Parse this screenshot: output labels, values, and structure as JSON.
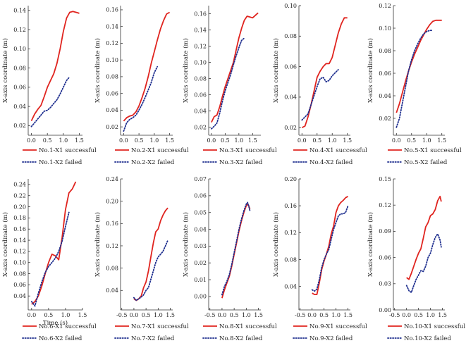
{
  "figure": {
    "xlabel": "Time (s)",
    "ylabel": "X-axis coordinate (m)"
  },
  "colors": {
    "success": "#e0241f",
    "failed": "#1f2f8f",
    "axis": "#333333"
  },
  "chart_data": [
    {
      "type": "line",
      "xticks": [
        "0.0",
        "0.5",
        "1.0",
        "1.5"
      ],
      "xlim": [
        -0.1,
        1.6
      ],
      "yticks": [
        "0.02",
        "0.04",
        "0.06",
        "0.08",
        "0.10",
        "0.12",
        "0.14"
      ],
      "ylim": [
        0.01,
        0.145
      ],
      "series": [
        {
          "name": "No.1-X1 successful",
          "style": "solid",
          "x": [
            0,
            0.1,
            0.2,
            0.3,
            0.4,
            0.5,
            0.6,
            0.7,
            0.8,
            0.9,
            1.0,
            1.1,
            1.2,
            1.3,
            1.4,
            1.5
          ],
          "y": [
            0.025,
            0.032,
            0.037,
            0.041,
            0.05,
            0.06,
            0.067,
            0.074,
            0.085,
            0.1,
            0.118,
            0.132,
            0.138,
            0.139,
            0.138,
            0.137
          ]
        },
        {
          "name": "No.1-X2 failed",
          "style": "dotted",
          "x": [
            0,
            0.1,
            0.2,
            0.3,
            0.4,
            0.5,
            0.6,
            0.7,
            0.8,
            0.9,
            1.0,
            1.1,
            1.2
          ],
          "y": [
            0.019,
            0.023,
            0.027,
            0.031,
            0.035,
            0.036,
            0.039,
            0.043,
            0.047,
            0.053,
            0.06,
            0.067,
            0.071
          ]
        }
      ]
    },
    {
      "type": "line",
      "xticks": [
        "0.0",
        "0.5",
        "1.0",
        "1.5"
      ],
      "xlim": [
        -0.1,
        1.6
      ],
      "yticks": [
        "0.02",
        "0.04",
        "0.06",
        "0.08",
        "0.10",
        "0.12",
        "0.14",
        "0.16"
      ],
      "ylim": [
        0.01,
        0.165
      ],
      "series": [
        {
          "name": "No.2-X1 successful",
          "style": "solid",
          "x": [
            0,
            0.1,
            0.2,
            0.3,
            0.4,
            0.5,
            0.6,
            0.7,
            0.8,
            0.9,
            1.0,
            1.1,
            1.2,
            1.3,
            1.4,
            1.5
          ],
          "y": [
            0.027,
            0.031,
            0.033,
            0.034,
            0.038,
            0.045,
            0.055,
            0.066,
            0.08,
            0.096,
            0.11,
            0.124,
            0.137,
            0.147,
            0.155,
            0.157
          ]
        },
        {
          "name": "No.2-X2 failed",
          "style": "dotted",
          "x": [
            0,
            0.1,
            0.2,
            0.3,
            0.4,
            0.5,
            0.6,
            0.7,
            0.8,
            0.9,
            1.0,
            1.1
          ],
          "y": [
            0.015,
            0.025,
            0.029,
            0.031,
            0.034,
            0.04,
            0.047,
            0.055,
            0.064,
            0.073,
            0.085,
            0.092
          ]
        }
      ]
    },
    {
      "type": "line",
      "xticks": [
        "0.0",
        "0.5",
        "1.0",
        "1.5"
      ],
      "xlim": [
        -0.1,
        1.8
      ],
      "yticks": [
        "0.02",
        "0.04",
        "0.06",
        "0.08",
        "0.10",
        "0.12",
        "0.14",
        "0.16"
      ],
      "ylim": [
        0.01,
        0.17
      ],
      "series": [
        {
          "name": "No.3-X1 successful",
          "style": "solid",
          "x": [
            0,
            0.1,
            0.2,
            0.3,
            0.4,
            0.5,
            0.6,
            0.7,
            0.8,
            0.9,
            1.0,
            1.1,
            1.2,
            1.3,
            1.4,
            1.5,
            1.6,
            1.7
          ],
          "y": [
            0.026,
            0.033,
            0.035,
            0.045,
            0.058,
            0.07,
            0.08,
            0.09,
            0.1,
            0.115,
            0.13,
            0.142,
            0.152,
            0.157,
            0.156,
            0.155,
            0.158,
            0.161
          ]
        },
        {
          "name": "No.3-X2 failed",
          "style": "dotted",
          "x": [
            0,
            0.1,
            0.2,
            0.3,
            0.4,
            0.5,
            0.6,
            0.7,
            0.8,
            0.9,
            1.0,
            1.1,
            1.2
          ],
          "y": [
            0.018,
            0.021,
            0.025,
            0.037,
            0.052,
            0.065,
            0.075,
            0.085,
            0.097,
            0.108,
            0.118,
            0.127,
            0.13
          ]
        }
      ]
    },
    {
      "type": "line",
      "xticks": [
        "0.0",
        "0.5",
        "1.0",
        "1.5"
      ],
      "xlim": [
        -0.1,
        1.6
      ],
      "yticks": [
        "0.02",
        "0.04",
        "0.06",
        "0.08",
        "0.10"
      ],
      "ylim": [
        0.015,
        0.1
      ],
      "series": [
        {
          "name": "No.4-X1 successful",
          "style": "solid",
          "x": [
            0,
            0.1,
            0.2,
            0.3,
            0.4,
            0.5,
            0.6,
            0.7,
            0.8,
            0.9,
            1.0,
            1.1,
            1.2,
            1.3,
            1.4,
            1.5
          ],
          "y": [
            0.02,
            0.021,
            0.027,
            0.035,
            0.044,
            0.053,
            0.057,
            0.06,
            0.062,
            0.062,
            0.066,
            0.074,
            0.082,
            0.088,
            0.092,
            0.092
          ]
        },
        {
          "name": "No.4-X2 failed",
          "style": "dotted",
          "x": [
            0,
            0.1,
            0.2,
            0.3,
            0.4,
            0.5,
            0.6,
            0.7,
            0.8,
            0.9,
            1.0,
            1.1,
            1.2
          ],
          "y": [
            0.025,
            0.027,
            0.029,
            0.035,
            0.041,
            0.047,
            0.052,
            0.053,
            0.05,
            0.051,
            0.054,
            0.056,
            0.058
          ]
        }
      ]
    },
    {
      "type": "line",
      "xticks": [
        "0.0",
        "0.5",
        "1.0",
        "1.5"
      ],
      "xlim": [
        -0.1,
        1.6
      ],
      "yticks": [
        "0.02",
        "0.04",
        "0.06",
        "0.08",
        "0.10",
        "0.12"
      ],
      "ylim": [
        0.005,
        0.12
      ],
      "series": [
        {
          "name": "No.5-X1 successful",
          "style": "solid",
          "x": [
            0,
            0.1,
            0.2,
            0.3,
            0.4,
            0.5,
            0.6,
            0.7,
            0.8,
            0.9,
            1.0,
            1.1,
            1.2,
            1.3,
            1.4,
            1.5
          ],
          "y": [
            0.025,
            0.033,
            0.043,
            0.053,
            0.062,
            0.07,
            0.077,
            0.083,
            0.089,
            0.094,
            0.099,
            0.103,
            0.106,
            0.107,
            0.107,
            0.107
          ]
        },
        {
          "name": "No.5-X2 failed",
          "style": "dotted",
          "x": [
            0,
            0.1,
            0.2,
            0.3,
            0.4,
            0.5,
            0.6,
            0.7,
            0.8,
            0.9,
            1.0,
            1.1,
            1.2
          ],
          "y": [
            0.012,
            0.02,
            0.034,
            0.048,
            0.062,
            0.072,
            0.08,
            0.086,
            0.091,
            0.095,
            0.097,
            0.098,
            0.098
          ]
        }
      ]
    },
    {
      "type": "line",
      "xticks": [
        "0.0",
        "0.5",
        "1.0",
        "1.5"
      ],
      "xlim": [
        -0.1,
        1.5
      ],
      "yticks": [
        "0.04",
        "0.06",
        "0.08",
        "0.10",
        "0.12",
        "0.14",
        "0.16",
        "0.18",
        "0.20",
        "0.22",
        "0.24"
      ],
      "ylim": [
        0.015,
        0.25
      ],
      "series": [
        {
          "name": "No.6-X1 successful",
          "style": "solid",
          "x": [
            0,
            0.1,
            0.2,
            0.3,
            0.4,
            0.5,
            0.6,
            0.7,
            0.8,
            0.9,
            1.0,
            1.1,
            1.2,
            1.3
          ],
          "y": [
            0.025,
            0.03,
            0.04,
            0.058,
            0.08,
            0.1,
            0.115,
            0.112,
            0.105,
            0.145,
            0.195,
            0.225,
            0.232,
            0.245
          ]
        },
        {
          "name": "No.6-X2 failed",
          "style": "dotted",
          "x": [
            0,
            0.1,
            0.2,
            0.3,
            0.4,
            0.5,
            0.6,
            0.7,
            0.8,
            0.9,
            1.0,
            1.1
          ],
          "y": [
            0.03,
            0.022,
            0.045,
            0.065,
            0.082,
            0.093,
            0.1,
            0.108,
            0.12,
            0.138,
            0.165,
            0.19
          ]
        }
      ]
    },
    {
      "type": "line",
      "xticks": [
        "-0.5",
        "0.0",
        "0.5",
        "1.0",
        "1.5"
      ],
      "xlim": [
        -0.55,
        1.6
      ],
      "yticks": [
        "0.04",
        "0.08",
        "0.12",
        "0.16",
        "0.20",
        "0.24"
      ],
      "ylim": [
        0.005,
        0.24
      ],
      "series": [
        {
          "name": "No.7-X1 successful",
          "style": "solid",
          "x": [
            0,
            0.1,
            0.2,
            0.3,
            0.4,
            0.5,
            0.6,
            0.7,
            0.8,
            0.9,
            1.0,
            1.1,
            1.2,
            1.3,
            1.4
          ],
          "y": [
            0.025,
            0.022,
            0.025,
            0.03,
            0.045,
            0.055,
            0.075,
            0.1,
            0.125,
            0.145,
            0.15,
            0.165,
            0.175,
            0.183,
            0.188
          ]
        },
        {
          "name": "No.7-X2 failed",
          "style": "dotted",
          "x": [
            0,
            0.1,
            0.2,
            0.3,
            0.4,
            0.5,
            0.6,
            0.7,
            0.8,
            0.9,
            1.0,
            1.1,
            1.2,
            1.3,
            1.4
          ],
          "y": [
            0.027,
            0.022,
            0.025,
            0.028,
            0.032,
            0.04,
            0.045,
            0.06,
            0.075,
            0.09,
            0.1,
            0.105,
            0.11,
            0.12,
            0.13
          ]
        }
      ]
    },
    {
      "type": "line",
      "xticks": [
        "-0.5",
        "0.0",
        "0.5",
        "1.0",
        "1.5"
      ],
      "xlim": [
        -0.55,
        1.6
      ],
      "yticks": [
        "0.00",
        "0.01",
        "0.02",
        "0.03",
        "0.04",
        "0.05",
        "0.06",
        "0.07"
      ],
      "ylim": [
        -0.008,
        0.07
      ],
      "series": [
        {
          "name": "No.8-X1 successful",
          "style": "solid",
          "x": [
            0,
            0.1,
            0.2,
            0.3,
            0.4,
            0.5,
            0.6,
            0.7,
            0.8,
            0.9,
            1.0,
            1.05,
            1.1,
            1.15
          ],
          "y": [
            -0.001,
            0.004,
            0.008,
            0.012,
            0.018,
            0.025,
            0.032,
            0.039,
            0.045,
            0.05,
            0.054,
            0.055,
            0.054,
            0.052
          ]
        },
        {
          "name": "No.8-X2 failed",
          "style": "dotted",
          "x": [
            0,
            0.1,
            0.2,
            0.3,
            0.4,
            0.5,
            0.6,
            0.7,
            0.8,
            0.9,
            1.0,
            1.05,
            1.1,
            1.15
          ],
          "y": [
            0.001,
            0.006,
            0.009,
            0.013,
            0.019,
            0.026,
            0.033,
            0.04,
            0.046,
            0.051,
            0.055,
            0.056,
            0.054,
            0.051
          ]
        }
      ]
    },
    {
      "type": "line",
      "xticks": [
        "-0.5",
        "0.0",
        "0.5",
        "1.0",
        "1.5"
      ],
      "xlim": [
        -0.55,
        1.6
      ],
      "yticks": [
        "0.04",
        "0.08",
        "0.12",
        "0.16",
        "0.20"
      ],
      "ylim": [
        0.005,
        0.2
      ],
      "series": [
        {
          "name": "No.9-X1 successful",
          "style": "solid",
          "x": [
            0,
            0.1,
            0.2,
            0.3,
            0.4,
            0.5,
            0.6,
            0.7,
            0.8,
            0.9,
            1.0,
            1.1,
            1.2,
            1.3,
            1.4,
            1.5
          ],
          "y": [
            0.03,
            0.028,
            0.028,
            0.045,
            0.065,
            0.078,
            0.088,
            0.1,
            0.118,
            0.13,
            0.15,
            0.16,
            0.165,
            0.168,
            0.172,
            0.174
          ]
        },
        {
          "name": "No.9-X2 failed",
          "style": "dotted",
          "x": [
            0,
            0.1,
            0.2,
            0.3,
            0.4,
            0.5,
            0.6,
            0.7,
            0.8,
            0.9,
            1.0,
            1.1,
            1.2,
            1.3,
            1.4,
            1.5
          ],
          "y": [
            0.035,
            0.033,
            0.036,
            0.05,
            0.068,
            0.08,
            0.088,
            0.095,
            0.11,
            0.125,
            0.135,
            0.145,
            0.148,
            0.148,
            0.15,
            0.16
          ]
        }
      ]
    },
    {
      "type": "line",
      "xticks": [
        "-0.5",
        "0.0",
        "0.5",
        "1.0",
        "1.5"
      ],
      "xlim": [
        -0.55,
        1.6
      ],
      "yticks": [
        "0.00",
        "0.03",
        "0.06",
        "0.09",
        "0.12",
        "0.15"
      ],
      "ylim": [
        0.0,
        0.15
      ],
      "series": [
        {
          "name": "No.10-X1 successful",
          "style": "solid",
          "x": [
            0,
            0.1,
            0.2,
            0.3,
            0.4,
            0.5,
            0.6,
            0.7,
            0.8,
            0.9,
            1.0,
            1.1,
            1.2,
            1.3,
            1.4,
            1.45
          ],
          "y": [
            0.037,
            0.035,
            0.042,
            0.05,
            0.058,
            0.065,
            0.07,
            0.082,
            0.095,
            0.1,
            0.108,
            0.11,
            0.115,
            0.125,
            0.13,
            0.124
          ]
        },
        {
          "name": "No.10-X2 failed",
          "style": "dotted",
          "x": [
            0,
            0.1,
            0.2,
            0.3,
            0.4,
            0.5,
            0.6,
            0.7,
            0.8,
            0.9,
            1.0,
            1.1,
            1.2,
            1.3,
            1.4,
            1.45
          ],
          "y": [
            0.028,
            0.022,
            0.02,
            0.028,
            0.035,
            0.04,
            0.045,
            0.044,
            0.05,
            0.06,
            0.065,
            0.075,
            0.083,
            0.087,
            0.08,
            0.072
          ]
        }
      ]
    }
  ]
}
